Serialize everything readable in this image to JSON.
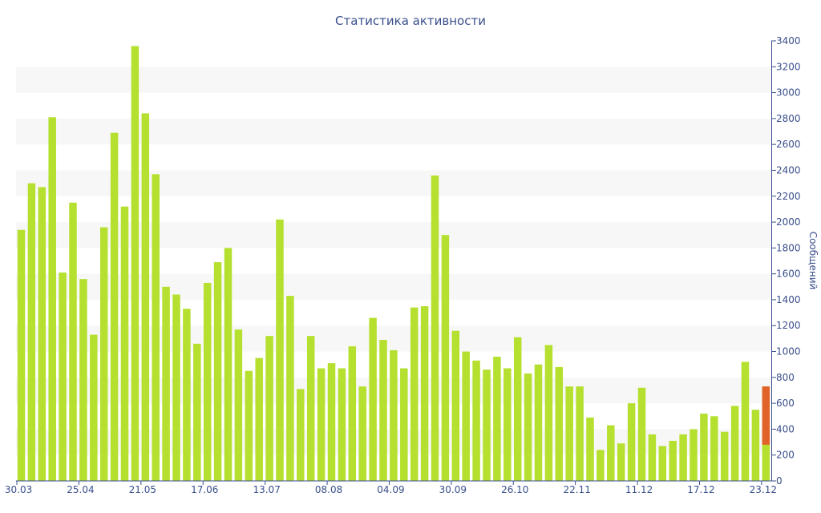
{
  "colors": {
    "bar": "#b5e02f",
    "highlight": "#e0632a",
    "band": "#f7f7f7",
    "axis": "#3a4f8c",
    "text": "#3a4f8c"
  },
  "chart_data": {
    "type": "bar",
    "title": "Статистика активности",
    "xlabel": "",
    "ylabel": "Сообщений",
    "ylim": [
      0,
      3400
    ],
    "y_ticks": [
      0,
      200,
      400,
      600,
      800,
      1000,
      1200,
      1400,
      1600,
      1800,
      2000,
      2200,
      2400,
      2600,
      2800,
      3000,
      3200,
      3400
    ],
    "x_tick_labels": [
      {
        "index": 0,
        "label": "30.03"
      },
      {
        "index": 6,
        "label": "25.04"
      },
      {
        "index": 12,
        "label": "21.05"
      },
      {
        "index": 18,
        "label": "17.06"
      },
      {
        "index": 24,
        "label": "13.07"
      },
      {
        "index": 30,
        "label": "08.08"
      },
      {
        "index": 36,
        "label": "04.09"
      },
      {
        "index": 42,
        "label": "30.09"
      },
      {
        "index": 48,
        "label": "26.10"
      },
      {
        "index": 54,
        "label": "22.11"
      },
      {
        "index": 60,
        "label": "11.12"
      },
      {
        "index": 66,
        "label": "17.12"
      },
      {
        "index": 72,
        "label": "23.12"
      }
    ],
    "grid": "horizontal bands",
    "y_axis_position": "right",
    "values": [
      1940,
      2300,
      2270,
      2810,
      1610,
      2150,
      1560,
      1130,
      1960,
      2690,
      2120,
      3360,
      2840,
      2370,
      1500,
      1440,
      1330,
      1060,
      1530,
      1690,
      1800,
      1170,
      850,
      950,
      1120,
      2020,
      1430,
      710,
      1120,
      870,
      910,
      870,
      1040,
      730,
      1260,
      1090,
      1010,
      870,
      1340,
      1350,
      2360,
      1900,
      1160,
      1000,
      930,
      860,
      960,
      870,
      1110,
      830,
      900,
      1050,
      880,
      730,
      730,
      490,
      240,
      430,
      290,
      600,
      720,
      360,
      270,
      310,
      360,
      400,
      520,
      500,
      380,
      580,
      920,
      550,
      730
    ],
    "highlight": {
      "index": 72,
      "from": 280,
      "to": 730
    }
  }
}
